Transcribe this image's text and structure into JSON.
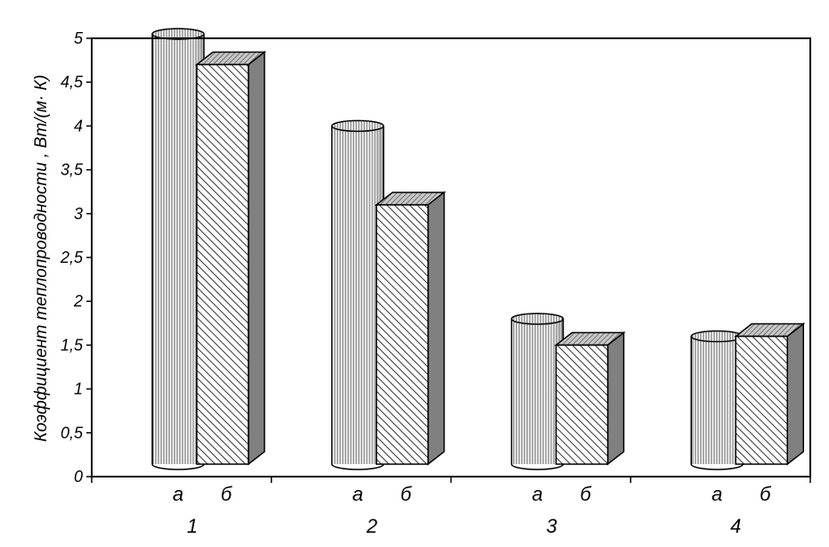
{
  "chart_data": {
    "type": "bar",
    "style": "3d",
    "title": "",
    "xlabel": "",
    "ylabel": "Коэффициент теплопроводности , Вт/(м· К)",
    "ylim": [
      0,
      5
    ],
    "yticks": [
      "0",
      "0,5",
      "1",
      "1,5",
      "2",
      "2,5",
      "3",
      "3,5",
      "4",
      "4,5",
      "5"
    ],
    "categories": [
      "1",
      "2",
      "3",
      "4"
    ],
    "series": [
      {
        "name": "а",
        "shape": "cylinder",
        "pattern": "vertical-lines",
        "values": [
          5.05,
          4.0,
          1.8,
          1.6
        ]
      },
      {
        "name": "б",
        "shape": "box",
        "pattern": "diagonal-hatch",
        "values": [
          4.7,
          3.1,
          1.5,
          1.6
        ]
      }
    ],
    "grid": false,
    "legend": "none",
    "colors": {
      "front": "#ffffff",
      "side": "#808080",
      "top": "#b0b0b0",
      "axis": "#000000"
    }
  }
}
